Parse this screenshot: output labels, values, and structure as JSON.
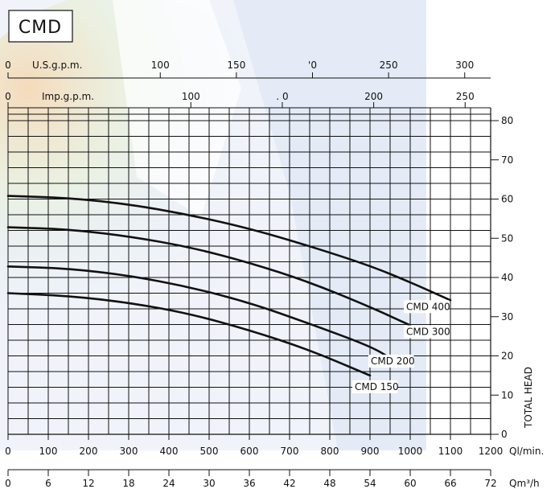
{
  "chart_data": {
    "type": "line",
    "title": "CMD",
    "xlabel": "Ql/min.",
    "xlabel2": "Qm³/h",
    "ylabel": "TOTAL HEAD",
    "xlim": [
      0,
      1200
    ],
    "ylim": [
      0,
      80
    ],
    "grid": true,
    "x_ticks": [
      0,
      100,
      200,
      300,
      400,
      500,
      600,
      700,
      800,
      900,
      1000,
      1100,
      1200
    ],
    "x_tick_labels": [
      "0",
      "100",
      "200",
      "300",
      "400",
      "500",
      "600",
      "700",
      "800",
      "900",
      "1000",
      "1100",
      "1200"
    ],
    "x2_ticks": [
      0,
      100,
      200,
      300,
      400,
      500,
      600,
      700,
      800,
      900,
      1000,
      1100,
      1200
    ],
    "x2_tick_labels": [
      "0",
      "6",
      "12",
      "18",
      "24",
      "30",
      "36",
      "42",
      "48",
      "54",
      "60",
      "66",
      "72"
    ],
    "y_ticks": [
      0,
      10,
      20,
      30,
      40,
      50,
      60,
      70,
      80
    ],
    "y_tick_labels": [
      "0",
      "10",
      "20",
      "30",
      "40",
      "50",
      "60",
      "70",
      "80"
    ],
    "us_gpm_label": "U.S.g.p.m.",
    "us_gpm_ticks": [
      0,
      100,
      150,
      200,
      250,
      300
    ],
    "us_gpm_tick_labels": [
      "0",
      "100",
      "150",
      "'0",
      "250",
      "300"
    ],
    "imp_gpm_label": "Imp.g.p.m.",
    "imp_gpm_ticks": [
      0,
      100,
      150,
      200,
      250
    ],
    "imp_gpm_tick_labels": [
      "0",
      "100",
      ". 0",
      "200",
      "250"
    ],
    "series": [
      {
        "name": "CMD 400",
        "x": [
          0,
          150,
          300,
          450,
          600,
          750,
          900,
          1000,
          1100
        ],
        "y": [
          60.8,
          60.3,
          58.7,
          56.0,
          52.5,
          48.0,
          43.0,
          38.8,
          34.2
        ]
      },
      {
        "name": "CMD 300",
        "x": [
          0,
          150,
          300,
          450,
          600,
          750,
          900,
          1000
        ],
        "y": [
          52.8,
          52.3,
          50.5,
          47.8,
          43.8,
          38.8,
          32.5,
          27.8
        ]
      },
      {
        "name": "CMD 200",
        "x": [
          0,
          150,
          300,
          450,
          600,
          750,
          900,
          950
        ],
        "y": [
          42.8,
          42.3,
          40.5,
          37.6,
          33.6,
          28.2,
          22.5,
          19.5
        ]
      },
      {
        "name": "CMD 150",
        "x": [
          0,
          150,
          300,
          450,
          600,
          750,
          900
        ],
        "y": [
          36.0,
          35.3,
          33.6,
          30.8,
          26.6,
          21.5,
          15.0
        ]
      }
    ]
  }
}
